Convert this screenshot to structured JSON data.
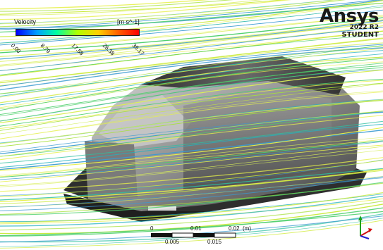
{
  "legend": {
    "title": "Velocity",
    "units": "[m s^-1]",
    "ticks": [
      "0.00",
      "8.79",
      "17.58",
      "26.38",
      "35.17"
    ],
    "colormap": [
      "#0000ff",
      "#00a0ff",
      "#00ffa0",
      "#b0ff00",
      "#ffd000",
      "#ff6000",
      "#ff0000"
    ]
  },
  "brand": {
    "name": "Ansys",
    "version": "2022 R2",
    "edition": "STUDENT"
  },
  "scale_bar": {
    "top_labels": [
      "0",
      "0.01",
      "0.02",
      "(m)"
    ],
    "bottom_labels": [
      "0.005",
      "0.015"
    ]
  },
  "triad": {
    "axes": [
      "Y",
      "X",
      "Z"
    ],
    "colors": [
      "#1ca01c",
      "#d01010",
      "#2020d0"
    ]
  }
}
